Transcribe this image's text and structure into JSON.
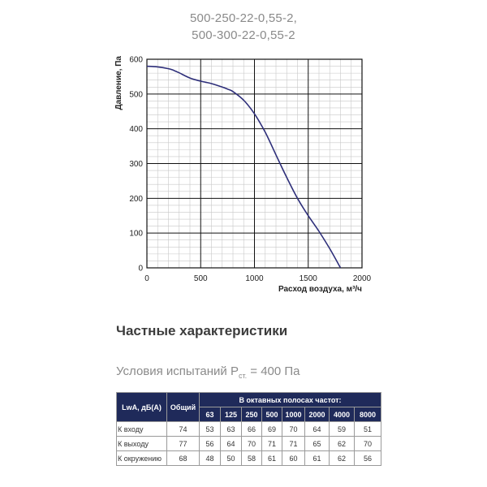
{
  "model": {
    "line1": "500-250-22-0,55-2,",
    "line2": "500-300-22-0,55-2"
  },
  "chart_data": {
    "type": "line",
    "xlabel": "Расход воздуха, м³/ч",
    "ylabel": "Давление, Па",
    "xlim": [
      0,
      2000
    ],
    "ylim": [
      0,
      600
    ],
    "xticks": [
      "0",
      "500",
      "1000",
      "1500",
      "2000"
    ],
    "yticks": [
      "0",
      "100",
      "200",
      "300",
      "400",
      "500",
      "600"
    ],
    "grid": true,
    "line_color": "#2e2f7a",
    "series": [
      {
        "x": [
          0,
          100,
          200,
          250,
          300,
          400,
          500,
          600,
          700,
          750,
          800,
          900,
          1000,
          1100,
          1200,
          1300,
          1400,
          1500,
          1600,
          1700,
          1800
        ],
        "values": [
          580,
          578,
          573,
          568,
          561,
          546,
          537,
          530,
          520,
          514,
          507,
          482,
          443,
          390,
          325,
          260,
          200,
          150,
          105,
          55,
          0
        ]
      }
    ]
  },
  "section": {
    "title": "Частные характеристики"
  },
  "conditions": {
    "prefix": "Условия испытаний P",
    "sub": "ст.",
    "suffix": " = 400 Па"
  },
  "table": {
    "corner": "LwA, дБ(A)",
    "total": "Общий",
    "bands_header": "В октавных полосах частот:",
    "bands": [
      "63",
      "125",
      "250",
      "500",
      "1000",
      "2000",
      "4000",
      "8000"
    ],
    "rows": [
      {
        "label": "К входу",
        "total": "74",
        "values": [
          "53",
          "63",
          "66",
          "69",
          "70",
          "64",
          "59",
          "51"
        ]
      },
      {
        "label": "К выходу",
        "total": "77",
        "values": [
          "56",
          "64",
          "70",
          "71",
          "71",
          "65",
          "62",
          "70"
        ]
      },
      {
        "label": "К окружению",
        "total": "68",
        "values": [
          "48",
          "50",
          "58",
          "61",
          "60",
          "61",
          "62",
          "56"
        ]
      }
    ]
  },
  "colors": {
    "header_bg": "#1f2a5a",
    "curve": "#2e2f7a"
  }
}
